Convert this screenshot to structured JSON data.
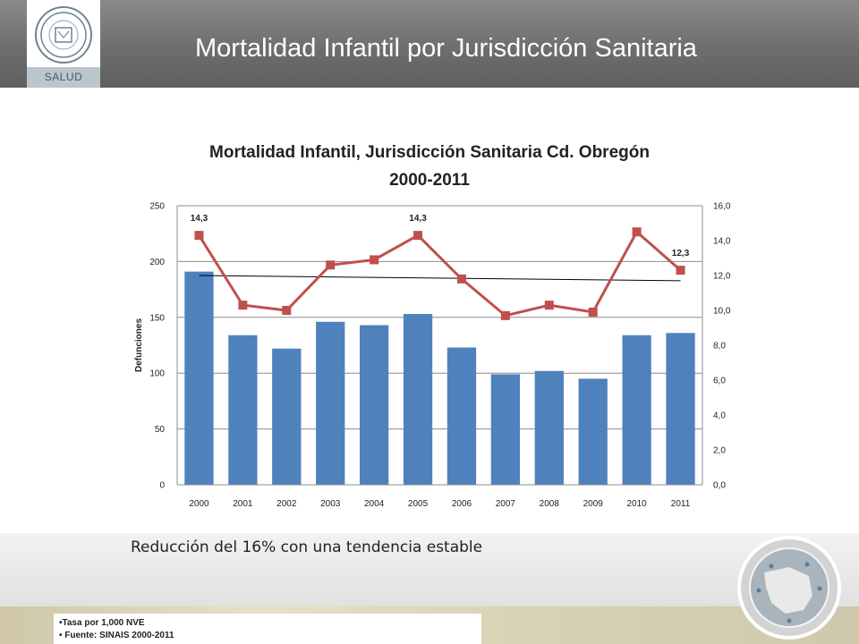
{
  "header": {
    "title": "Mortalidad Infantil por Jurisdicción Sanitaria",
    "logo_text": "SALUD",
    "logo_icon": "health-seal-icon"
  },
  "chart_data": {
    "type": "bar+line",
    "title_lines": [
      "Mortalidad Infantil, Jurisdicción Sanitaria Cd. Obregón",
      "2000-2011"
    ],
    "categories": [
      "2000",
      "2001",
      "2002",
      "2003",
      "2004",
      "2005",
      "2006",
      "2007",
      "2008",
      "2009",
      "2010",
      "2011"
    ],
    "series": [
      {
        "type": "bar",
        "axis": "left",
        "values": [
          191,
          134,
          122,
          146,
          143,
          153,
          123,
          99,
          102,
          95,
          134,
          136
        ],
        "color": "#4f81bd"
      },
      {
        "type": "line",
        "axis": "right",
        "values": [
          14.3,
          10.3,
          10.0,
          12.6,
          12.9,
          14.3,
          11.8,
          9.7,
          10.3,
          9.9,
          14.5,
          12.3
        ],
        "color": "#c0504d"
      }
    ],
    "trendline": {
      "axis": "right",
      "start": 12.0,
      "end": 11.7,
      "color": "#000000"
    },
    "data_labels": [
      {
        "index": 0,
        "text": "14,3"
      },
      {
        "index": 5,
        "text": "14,3"
      },
      {
        "index": 11,
        "text": "12,3"
      }
    ],
    "ylabel_left": "Defunciones",
    "ylim_left": [
      0,
      250
    ],
    "yticks_left": [
      "0",
      "50",
      "100",
      "150",
      "200",
      "250"
    ],
    "ylim_right": [
      0,
      16
    ],
    "yticks_right": [
      "0,0",
      "2,0",
      "4,0",
      "6,0",
      "8,0",
      "10,0",
      "12,0",
      "14,0",
      "16,0"
    ],
    "grid": true
  },
  "caption": "Reducción del 16% con una tendencia estable",
  "notes": [
    "•Tasa por 1,000 NVE",
    "• Fuente: SINAIS 2000-2011"
  ],
  "footer_seal": {
    "icon": "government-seal-icon"
  }
}
